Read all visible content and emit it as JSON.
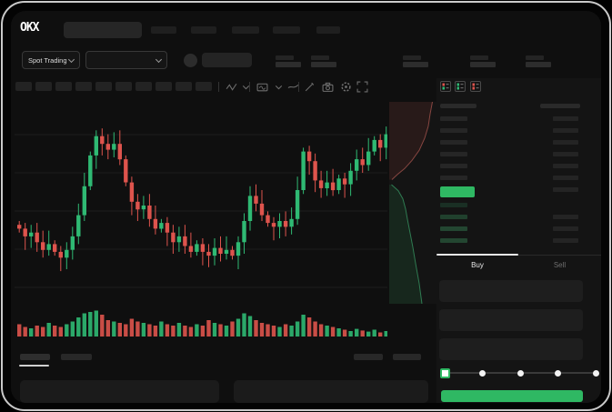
{
  "header": {
    "logo": "OKX",
    "search_placeholder": true,
    "nav_items": [
      {
        "label_placeholder": true
      },
      {
        "label_placeholder": true
      },
      {
        "label_placeholder": true
      },
      {
        "label_placeholder": true
      },
      {
        "label_placeholder": true
      }
    ]
  },
  "market_bar": {
    "market_selector_label": "Spot Trading",
    "pair_selector_placeholder": true,
    "coin_icon": "coin-avatar",
    "stat_placeholders": 5
  },
  "chart_toolbar": {
    "interval_placeholders": 10,
    "icons": [
      "candle-type-icon",
      "chevron-down-icon",
      "indicator-icon",
      "chevron-down-icon",
      "line-tool-icon",
      "draw-icon",
      "camera-icon",
      "settings-icon",
      "fullscreen-icon"
    ]
  },
  "order_book": {
    "view_icons": [
      "book-combined-icon",
      "book-bids-icon",
      "book-asks-icon"
    ],
    "ask_row_count": 6,
    "right_column_row_count": 7,
    "bid_row_count": 4,
    "right_lower_row_count": 3,
    "last_price_highlight": "green",
    "tabs": [
      {
        "label": "Buy",
        "active": true
      },
      {
        "label": "Sell",
        "active": false
      }
    ],
    "form_field_count": 3,
    "slider": {
      "stops": 5,
      "selected_index": 0
    },
    "submit_button_color": "#2fb863"
  },
  "bottom_panel": {
    "tab_placeholders": 2,
    "active_tab_index": 0,
    "action_placeholders": 2,
    "content_panels": 2
  },
  "colors": {
    "up": "#2fb973",
    "down": "#de544d",
    "accent_green": "#2fb863",
    "bg": "#0f0f0f",
    "panel": "#1b1b1b",
    "placeholder": "#242424",
    "grid": "#1c1c1c",
    "white": "#f2f2f2"
  },
  "chart_data": [
    {
      "type": "candlestick",
      "title": "",
      "xlabel": "",
      "ylabel": "",
      "value_scale": "normalized 0-100 (skeleton chart, no axis labels visible)",
      "grid": true,
      "closes": [
        38,
        34,
        36,
        31,
        27,
        30,
        26,
        23,
        27,
        34,
        45,
        60,
        76,
        86,
        82,
        79,
        82,
        74,
        62,
        52,
        48,
        50,
        43,
        38,
        41,
        36,
        31,
        34,
        29,
        26,
        30,
        26,
        24,
        28,
        25,
        27,
        24,
        31,
        42,
        55,
        51,
        45,
        41,
        39,
        42,
        39,
        43,
        58,
        78,
        73,
        63,
        59,
        62,
        58,
        64,
        61,
        68,
        74,
        71,
        78,
        84,
        80,
        87
      ],
      "first_open": 40
    },
    {
      "type": "bar",
      "name": "volume",
      "value_scale": "normalized 0-100",
      "values": [
        45,
        35,
        30,
        40,
        35,
        50,
        40,
        35,
        45,
        55,
        70,
        85,
        90,
        95,
        80,
        60,
        55,
        50,
        45,
        65,
        55,
        50,
        45,
        40,
        55,
        45,
        40,
        50,
        40,
        35,
        45,
        40,
        60,
        50,
        45,
        40,
        55,
        65,
        85,
        75,
        60,
        50,
        45,
        40,
        35,
        45,
        40,
        55,
        80,
        70,
        55,
        45,
        40,
        35,
        30,
        25,
        20,
        28,
        22,
        18,
        25,
        15,
        20
      ]
    },
    {
      "type": "area",
      "name": "depth",
      "orientation": "vertical",
      "asks": [
        [
          0,
          0.95
        ],
        [
          0.06,
          0.9
        ],
        [
          0.12,
          0.86
        ],
        [
          0.18,
          0.78
        ],
        [
          0.24,
          0.66
        ],
        [
          0.29,
          0.5
        ],
        [
          0.33,
          0.34
        ],
        [
          0.36,
          0.18
        ],
        [
          0.385,
          0.06
        ]
      ],
      "bids": [
        [
          0.41,
          0.05
        ],
        [
          0.44,
          0.2
        ],
        [
          0.48,
          0.3
        ],
        [
          0.53,
          0.36
        ],
        [
          0.58,
          0.4
        ],
        [
          0.65,
          0.46
        ],
        [
          0.72,
          0.52
        ],
        [
          0.8,
          0.58
        ],
        [
          0.9,
          0.66
        ],
        [
          1.0,
          0.72
        ]
      ]
    }
  ]
}
